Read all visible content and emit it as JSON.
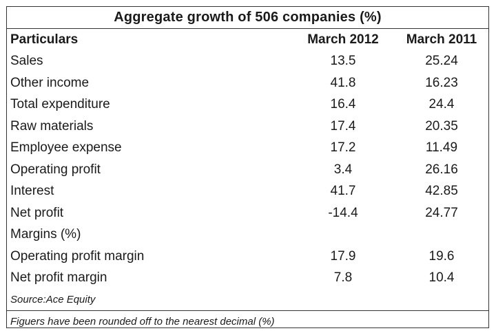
{
  "title": "Aggregate growth of 506 companies (%)",
  "header": {
    "particulars": "Particulars",
    "col_2012": "March 2012",
    "col_2011": "March 2011"
  },
  "rows": [
    {
      "label": "Sales",
      "v2012": "13.5",
      "v2011": "25.24"
    },
    {
      "label": "Other income",
      "v2012": "41.8",
      "v2011": "16.23"
    },
    {
      "label": "Total expenditure",
      "v2012": "16.4",
      "v2011": "24.4"
    },
    {
      "label": "Raw materials",
      "v2012": "17.4",
      "v2011": "20.35"
    },
    {
      "label": "Employee expense",
      "v2012": "17.2",
      "v2011": "11.49"
    },
    {
      "label": "Operating profit",
      "v2012": "3.4",
      "v2011": "26.16"
    },
    {
      "label": "Interest",
      "v2012": "41.7",
      "v2011": "42.85"
    },
    {
      "label": "Net profit",
      "v2012": "-14.4",
      "v2011": "24.77"
    },
    {
      "label": "Margins (%)",
      "v2012": "",
      "v2011": ""
    },
    {
      "label": "Operating profit margin",
      "v2012": "17.9",
      "v2011": "19.6"
    },
    {
      "label": "Net profit margin",
      "v2012": "7.8",
      "v2011": "10.4"
    }
  ],
  "source": "Source:Ace Equity",
  "footnote": "Figuers have been rounded off to the nearest decimal (%)"
}
